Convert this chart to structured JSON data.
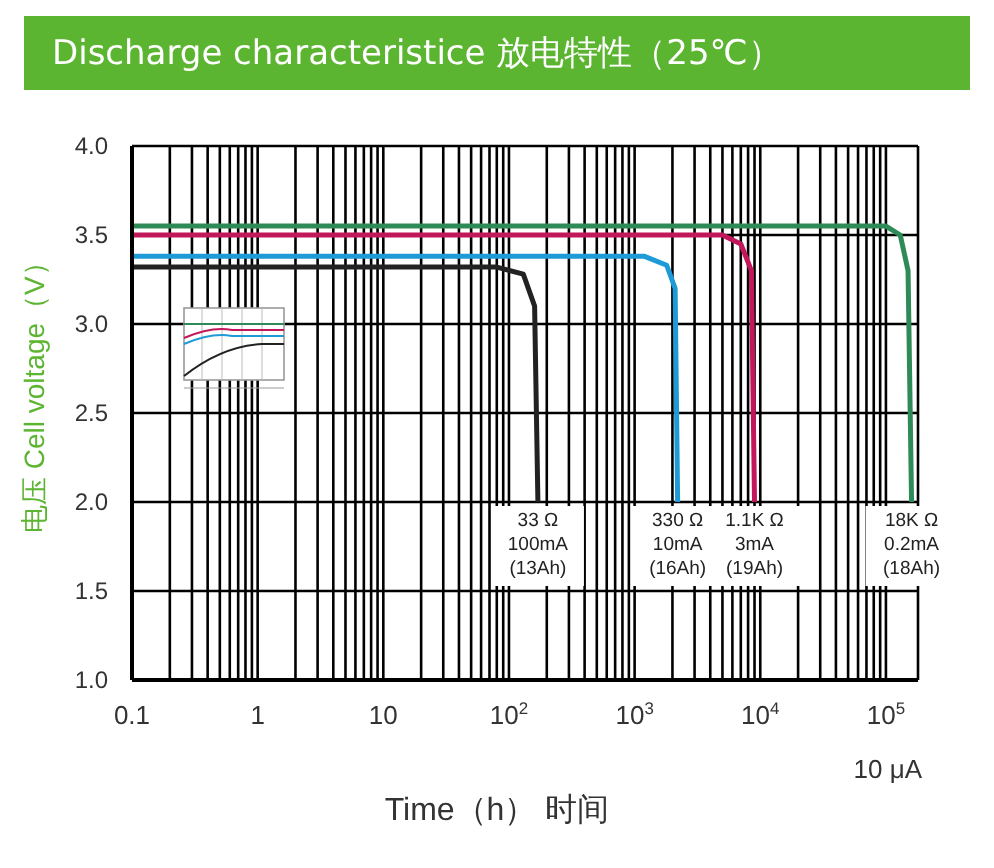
{
  "chart_data": {
    "type": "line",
    "title": "Discharge characteristice  放电特性（25℃）",
    "xlabel": "Time（h） 时间",
    "ylabel": "电压 Cell voltage（V）",
    "log": "x",
    "grid": true,
    "marker": "none",
    "line_style": "solid",
    "xlim": [
      0.1,
      180000
    ],
    "ylim": [
      1.0,
      4.0
    ],
    "yticks": [
      {
        "value": 1,
        "label": "1.0"
      },
      1.5,
      {
        "value": 2,
        "label": "2.0"
      },
      2.5,
      {
        "value": 3,
        "label": "3.0"
      },
      3.5,
      {
        "value": 4,
        "label": "4.0"
      }
    ],
    "xticks": [
      0.1,
      {
        "value": 0.2,
        "label": null
      },
      {
        "value": 0.3,
        "label": null
      },
      {
        "value": 0.4,
        "label": null
      },
      {
        "value": 0.5,
        "label": null
      },
      {
        "value": 0.6,
        "label": null
      },
      {
        "value": 0.7,
        "label": null
      },
      {
        "value": 0.8,
        "label": null
      },
      {
        "value": 0.9,
        "label": null
      },
      1,
      {
        "value": 2,
        "label": null
      },
      {
        "value": 3,
        "label": null
      },
      {
        "value": 4,
        "label": null
      },
      {
        "value": 5,
        "label": null
      },
      {
        "value": 6,
        "label": null
      },
      {
        "value": 7,
        "label": null
      },
      {
        "value": 8,
        "label": null
      },
      {
        "value": 9,
        "label": null
      },
      10,
      {
        "value": 20,
        "label": null
      },
      {
        "value": 30,
        "label": null
      },
      {
        "value": 40,
        "label": null
      },
      {
        "value": 50,
        "label": null
      },
      {
        "value": 60,
        "label": null
      },
      {
        "value": 70,
        "label": null
      },
      {
        "value": 80,
        "label": null
      },
      {
        "value": 90,
        "label": null
      },
      {
        "value": 100,
        "label": "10$^{2}$"
      },
      {
        "value": 200,
        "label": null
      },
      {
        "value": 300,
        "label": null
      },
      {
        "value": 400,
        "label": null
      },
      {
        "value": 500,
        "label": null
      },
      {
        "value": 600,
        "label": null
      },
      {
        "value": 700,
        "label": null
      },
      {
        "value": 800,
        "label": null
      },
      {
        "value": 900,
        "label": null
      },
      {
        "value": 1000,
        "label": "10$^{3}$"
      },
      {
        "value": 2000,
        "label": null
      },
      {
        "value": 3000,
        "label": null
      },
      {
        "value": 4000,
        "label": null
      },
      {
        "value": 5000,
        "label": null
      },
      {
        "value": 6000,
        "label": null
      },
      {
        "value": 7000,
        "label": null
      },
      {
        "value": 8000,
        "label": null
      },
      {
        "value": 9000,
        "label": null
      },
      {
        "value": 10000,
        "label": "10$^{4}$"
      },
      {
        "value": 20000,
        "label": null
      },
      {
        "value": 30000,
        "label": null
      },
      {
        "value": 40000,
        "label": null
      },
      {
        "value": 50000,
        "label": null
      },
      {
        "value": 60000,
        "label": null
      },
      {
        "value": 70000,
        "label": null
      },
      {
        "value": 80000,
        "label": null
      },
      {
        "value": 90000,
        "label": null
      },
      {
        "value": 100000,
        "label": "10$^{5}$"
      }
    ],
    "series": [
      {
        "color": "#2e8b57",
        "x": [
          0.1,
          100000,
          130000,
          150000,
          160000
        ],
        "values": [
          3.55,
          3.55,
          3.5,
          3.3,
          2.0
        ]
      },
      {
        "color": "#c2185b",
        "x": [
          0.1,
          5000,
          7000,
          8500,
          9000
        ],
        "values": [
          3.5,
          3.5,
          3.45,
          3.3,
          2.0
        ]
      },
      {
        "color": "#1e9bd7",
        "x": [
          0.1,
          1200,
          1800,
          2100,
          2200
        ],
        "values": [
          3.38,
          3.38,
          3.33,
          3.2,
          2.0
        ]
      },
      {
        "color": "#222222",
        "x": [
          0.1,
          80,
          130,
          160,
          170
        ],
        "values": [
          3.32,
          3.32,
          3.28,
          3.1,
          2.0
        ]
      }
    ],
    "annotations": [
      {
        "text": "33 Ω\n100mA\n(13Ah)",
        "x": 170,
        "y": 2.0
      },
      {
        "text": "330 Ω\n10mA\n(16Ah)",
        "x": 2200,
        "y": 2.0
      },
      {
        "text": "1.1K Ω\n3mA\n(19Ah)",
        "x": 9000,
        "y": 2.0
      },
      {
        "text": "18K Ω\n0.2mA\n(18Ah)",
        "x": 160000,
        "y": 2.0
      },
      "10 μA"
    ]
  }
}
